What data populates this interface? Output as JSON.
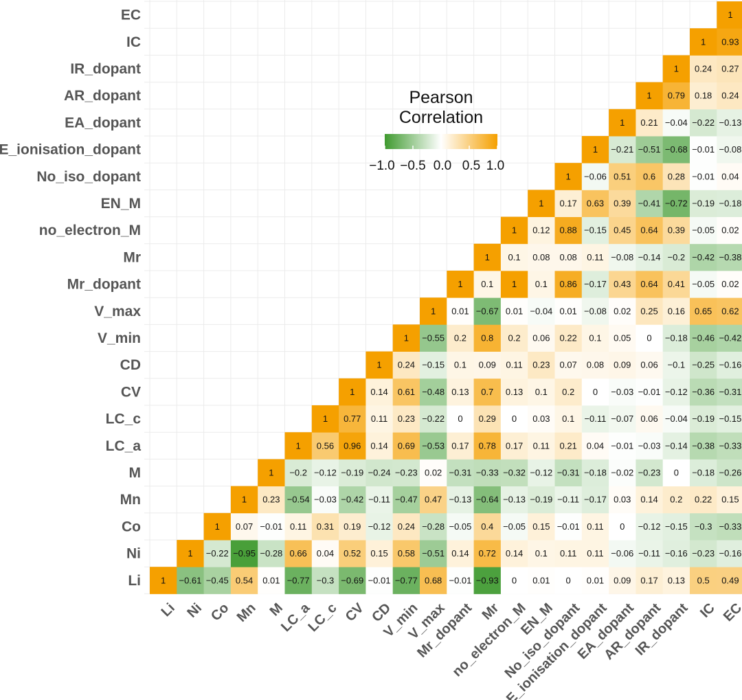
{
  "chart_data": {
    "type": "heatmap",
    "variables": [
      "Li",
      "Ni",
      "Co",
      "Mn",
      "M",
      "LC_a",
      "LC_c",
      "CV",
      "CD",
      "V_min",
      "V_max",
      "Mr_dopant",
      "Mr",
      "no_electron_M",
      "EN_M",
      "No_iso_dopant",
      "E_ionisation_dopant",
      "EA_dopant",
      "AR_dopant",
      "IR_dopant",
      "IC",
      "EC"
    ],
    "y_labels_top_to_bottom": [
      "EC",
      "IC",
      "IR_dopant",
      "AR_dopant",
      "EA_dopant",
      "E_ionisation_dopant",
      "No_iso_dopant",
      "EN_M",
      "no_electron_M",
      "Mr",
      "Mr_dopant",
      "V_max",
      "V_min",
      "CD",
      "CV",
      "LC_c",
      "LC_a",
      "M",
      "Mn",
      "Co",
      "Ni",
      "Li"
    ],
    "x_labels": [
      "Li",
      "Ni",
      "Co",
      "Mn",
      "M",
      "LC_a",
      "LC_c",
      "CV",
      "CD",
      "V_min",
      "V_max",
      "Mr_dopant",
      "Mr",
      "no_electron_M",
      "EN_M",
      "No_iso_dopant",
      "E_ionisation_dopant",
      "EA_dopant",
      "AR_dopant",
      "IR_dopant",
      "IC",
      "EC"
    ],
    "rows": [
      [
        1,
        -0.61,
        -0.45,
        0.54,
        0.01,
        -0.77,
        -0.3,
        -0.69,
        -0.01,
        -0.77,
        0.68,
        -0.01,
        -0.93,
        0,
        0.01,
        0,
        0.01,
        0.09,
        0.17,
        0.13,
        0.5,
        0.49
      ],
      [
        1,
        -0.22,
        -0.95,
        -0.28,
        0.66,
        0.04,
        0.52,
        0.15,
        0.58,
        -0.51,
        0.14,
        0.72,
        0.14,
        0.1,
        0.11,
        0.11,
        -0.06,
        -0.11,
        -0.16,
        -0.23,
        -0.16
      ],
      [
        1,
        0.07,
        -0.01,
        0.11,
        0.31,
        0.19,
        -0.12,
        0.24,
        -0.28,
        -0.05,
        0.4,
        -0.05,
        0.15,
        -0.01,
        0.11,
        0,
        -0.12,
        -0.15,
        -0.3,
        -0.33
      ],
      [
        1,
        0.23,
        -0.54,
        -0.03,
        -0.42,
        -0.11,
        -0.47,
        0.47,
        -0.13,
        -0.64,
        -0.13,
        -0.19,
        -0.11,
        -0.17,
        0.03,
        0.14,
        0.2,
        0.22,
        0.15
      ],
      [
        1,
        -0.2,
        -0.12,
        -0.19,
        -0.24,
        -0.23,
        0.02,
        -0.31,
        -0.33,
        -0.32,
        -0.12,
        -0.31,
        -0.18,
        -0.02,
        -0.23,
        0,
        -0.18,
        -0.26
      ],
      [
        1,
        0.56,
        0.96,
        0.14,
        0.69,
        -0.53,
        0.17,
        0.78,
        0.17,
        0.11,
        0.21,
        0.04,
        -0.01,
        -0.03,
        -0.14,
        -0.38,
        -0.33
      ],
      [
        1,
        0.77,
        0.11,
        0.23,
        -0.22,
        0,
        0.29,
        0,
        0.03,
        0.1,
        -0.11,
        -0.07,
        0.06,
        -0.04,
        -0.19,
        -0.15
      ],
      [
        1,
        0.14,
        0.61,
        -0.48,
        0.13,
        0.7,
        0.13,
        0.1,
        0.2,
        0,
        -0.03,
        -0.01,
        -0.12,
        -0.36,
        -0.31
      ],
      [
        1,
        0.24,
        -0.15,
        0.1,
        0.09,
        0.11,
        0.23,
        0.07,
        0.08,
        0.09,
        0.06,
        -0.1,
        -0.25,
        -0.16
      ],
      [
        1,
        -0.55,
        0.2,
        0.8,
        0.2,
        0.06,
        0.22,
        0.1,
        0.05,
        0,
        -0.18,
        -0.46,
        -0.42
      ],
      [
        1,
        0.01,
        -0.67,
        0.01,
        -0.04,
        0.01,
        -0.08,
        0.02,
        0.25,
        0.16,
        0.65,
        0.62
      ],
      [
        1,
        0.1,
        1,
        0.1,
        0.86,
        -0.17,
        0.43,
        0.64,
        0.41,
        -0.05,
        0.02
      ],
      [
        1,
        0.1,
        0.08,
        0.08,
        0.11,
        -0.08,
        -0.14,
        -0.2,
        -0.42,
        -0.38
      ],
      [
        1,
        0.12,
        0.88,
        -0.15,
        0.45,
        0.64,
        0.39,
        -0.05,
        0.02
      ],
      [
        1,
        0.17,
        0.63,
        0.39,
        -0.41,
        -0.72,
        -0.19,
        -0.18
      ],
      [
        1,
        -0.06,
        0.51,
        0.6,
        0.28,
        -0.01,
        0.04
      ],
      [
        1,
        -0.21,
        -0.51,
        -0.68,
        -0.01,
        -0.08
      ],
      [
        1,
        0.21,
        -0.04,
        -0.22,
        -0.13
      ],
      [
        1,
        0.79,
        0.18,
        0.24
      ],
      [
        1,
        0.24,
        0.27
      ],
      [
        1,
        0.93
      ],
      [
        1
      ]
    ],
    "color_scale": {
      "min": -1.0,
      "max": 1.0,
      "low": "#3f9a2f",
      "mid": "#ffffff",
      "high": "#f5a000"
    },
    "legend": {
      "title_line1": "Pearson",
      "title_line2": "Correlation",
      "ticks": [
        "−1.0",
        "−0.5",
        "0.0",
        "0.5",
        "1.0"
      ],
      "placement": "upper-center"
    },
    "grid": true,
    "title": "",
    "xlabel": "",
    "ylabel": ""
  }
}
